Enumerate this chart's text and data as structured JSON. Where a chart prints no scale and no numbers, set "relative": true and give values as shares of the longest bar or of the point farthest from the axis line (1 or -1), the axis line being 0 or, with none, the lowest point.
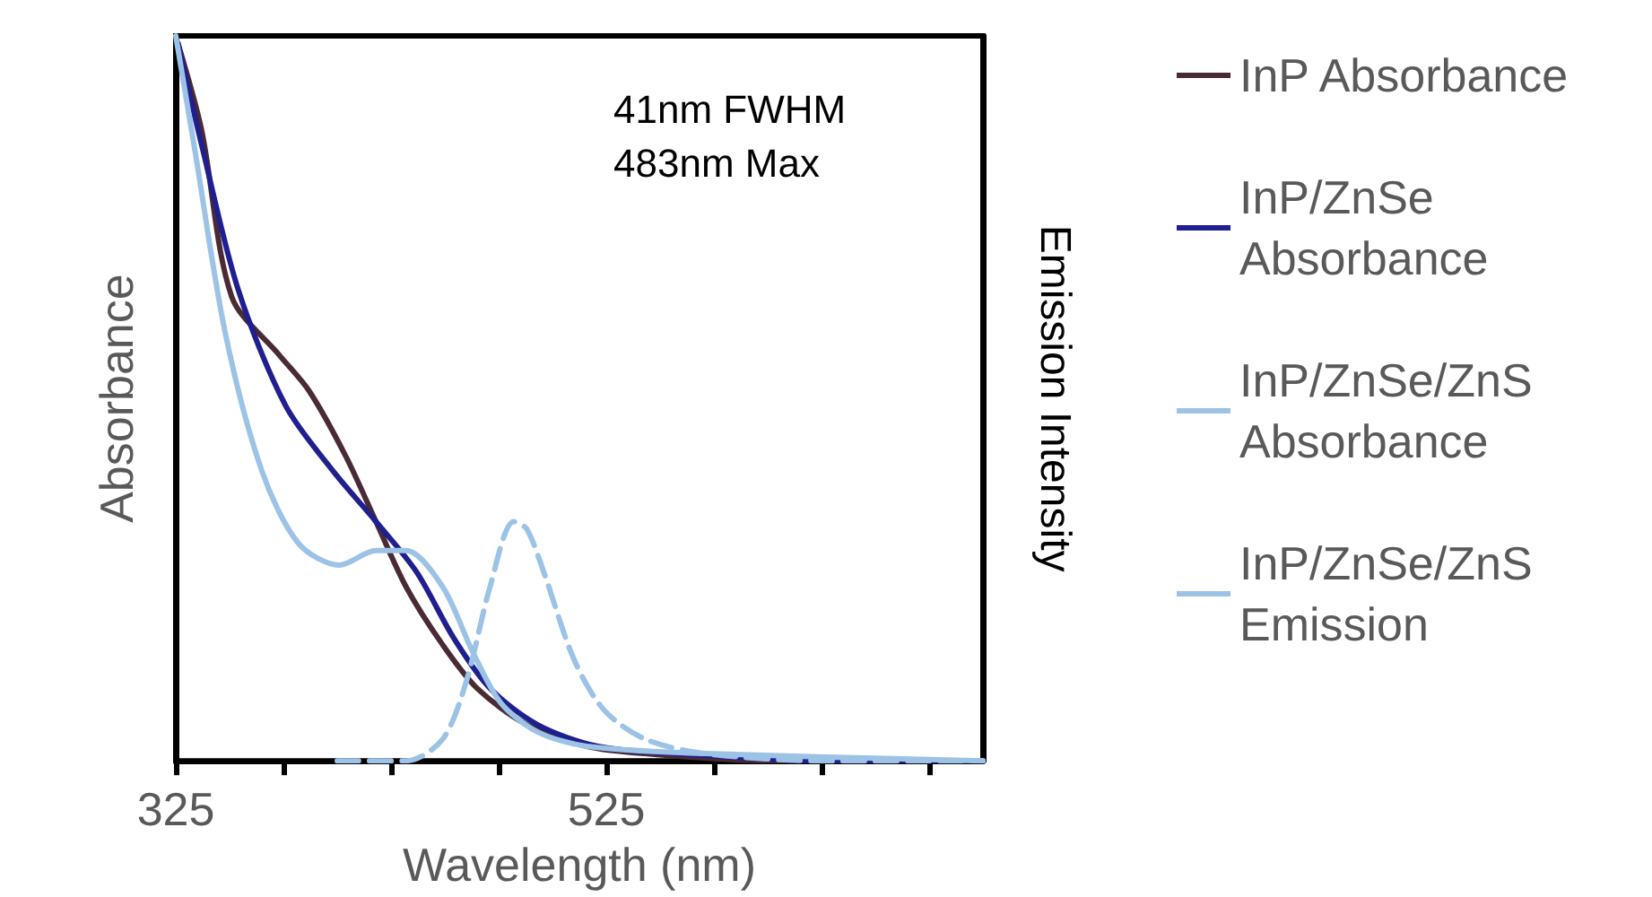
{
  "chart_data": {
    "type": "line",
    "relative": true,
    "xlabel": "Wavelength (nm)",
    "ylabel": "Absorbance",
    "y2label": "Emission Intensity",
    "annotations": [
      "41nm FWHM",
      "483nm Max"
    ],
    "xlim": [
      325,
      700
    ],
    "xticks": [
      325,
      {
        "value": 375,
        "label": null
      },
      {
        "value": 425,
        "label": null
      },
      {
        "value": 475,
        "label": null
      },
      525,
      {
        "value": 575,
        "label": null
      },
      {
        "value": 625,
        "label": null
      },
      {
        "value": 675,
        "label": null
      }
    ],
    "legend": "right",
    "grid": false,
    "marker": "none",
    "series": [
      {
        "name": "InP Absorbance",
        "color": "#4a2a35",
        "x": [
          326,
          337,
          351,
          373,
          387,
          404,
          418,
          432,
          449,
          465,
          488,
          516,
          543,
          599,
          700
        ],
        "values": [
          0.99,
          0.87,
          0.64,
          0.56,
          0.51,
          0.42,
          0.33,
          0.24,
          0.16,
          0.1,
          0.05,
          0.02,
          0.01,
          0.0,
          0.0
        ]
      },
      {
        "name": "InP/ZnSe Absorbance",
        "color": "#1f1f8f",
        "x": [
          326,
          337,
          354,
          376,
          398,
          418,
          437,
          454,
          471,
          493,
          521,
          557,
          627,
          700
        ],
        "values": [
          0.99,
          0.85,
          0.65,
          0.49,
          0.4,
          0.33,
          0.26,
          0.17,
          0.1,
          0.05,
          0.02,
          0.01,
          0.0,
          0.0
        ]
      },
      {
        "name": "InP/ZnSe/ZnS Absorbance",
        "color": "#9cc3e6",
        "x": [
          325,
          334,
          348,
          365,
          382,
          401,
          418,
          432,
          449,
          463,
          476,
          493,
          516,
          571,
          700
        ],
        "values": [
          1.0,
          0.84,
          0.59,
          0.4,
          0.3,
          0.27,
          0.29,
          0.29,
          0.24,
          0.15,
          0.08,
          0.04,
          0.02,
          0.01,
          0.0
        ]
      },
      {
        "name": "InP/ZnSe/ZnS Emission",
        "color": "#9cc3e6",
        "line_style": "dashed",
        "x": [
          400,
          432,
          449,
          460,
          471,
          482,
          488,
          496,
          510,
          524,
          543,
          571,
          627,
          700
        ],
        "values": [
          0.0,
          0.0,
          0.03,
          0.11,
          0.24,
          0.33,
          0.32,
          0.26,
          0.14,
          0.07,
          0.03,
          0.01,
          0.0,
          0.0
        ]
      }
    ]
  }
}
